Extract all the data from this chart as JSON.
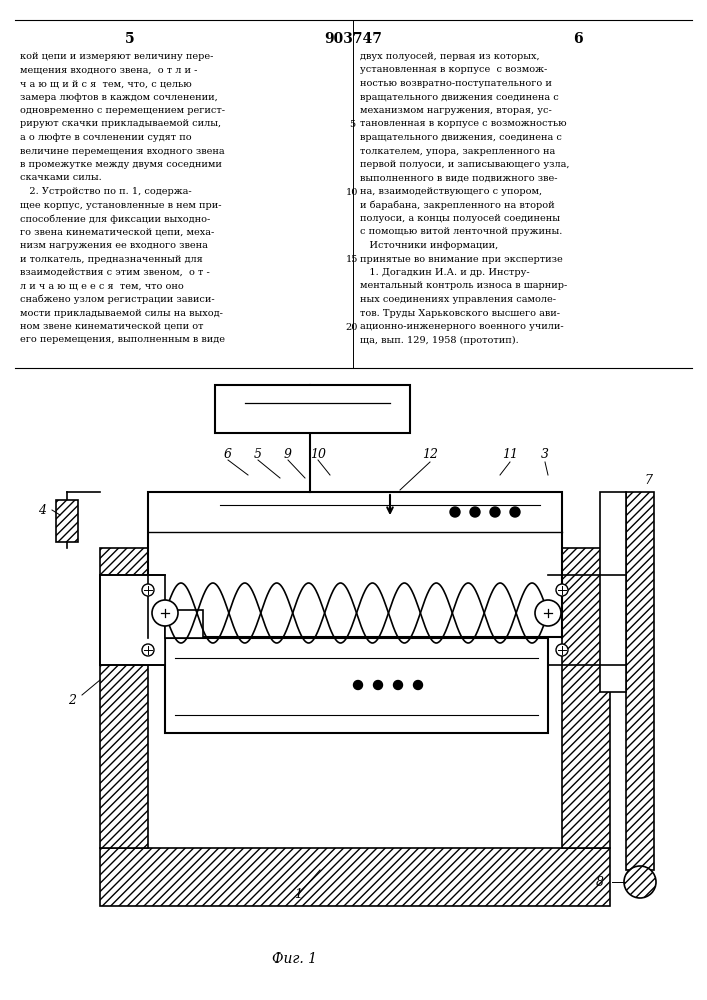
{
  "page_number_left": "5",
  "patent_number": "903747",
  "page_number_right": "6",
  "col_left_text": [
    "кой цепи и измеряют величину пере-",
    "мещения входного звена,  о т л и -",
    "ч а ю щ и й с я  тем, что, с целью",
    "замера люфтов в каждом сочленении,",
    "одновременно с перемещением регист-",
    "рируют скачки прикладываемой силы,",
    "а о люфте в сочленении судят по",
    "величине перемещения входного звена",
    "в промежутке между двумя соседними",
    "скачками силы.",
    "   2. Устройство по п. 1, содержа-",
    "щее корпус, установленные в нем при-",
    "способление для фиксации выходно-",
    "го звена кинематической цепи, меха-",
    "низм нагружения ее входного звена",
    "и толкатель, предназначенный для",
    "взаимодействия с этим звеном,  о т -",
    "л и ч а ю щ е е с я  тем, что оно",
    "снабжено узлом регистрации зависи-",
    "мости прикладываемой силы на выход-",
    "ном звене кинематической цепи от",
    "его перемещения, выполненным в виде"
  ],
  "col_right_text": [
    "двух полуосей, первая из которых,",
    "установленная в корпусе  с возмож-",
    "ностью возвратно-поступательного и",
    "вращательного движения соединена с",
    "механизмом нагружения, вторая, ус-",
    "тановленная в корпусе с возможностью",
    "вращательного движения, соединена с",
    "толкателем, упора, закрепленного на",
    "первой полуоси, и записывающего узла,",
    "выполненного в виде подвижного зве-",
    "на, взаимодействующего с упором,",
    "и барабана, закрепленного на второй",
    "полуоси, а концы полуосей соединены",
    "с помощью витой ленточной пружины.",
    "   Источники информации,",
    "принятые во внимание при экспертизе",
    "   1. Догадкин И.А. и др. Инстру-",
    "ментальный контроль износа в шарнир-",
    "ных соединениях управления самоле-",
    "тов. Труды Харьковского высшего ави-",
    "ационно-инженерного военного учили-",
    "ща, вып. 129, 1958 (прототип)."
  ],
  "fig_label": "Фиг. 1",
  "bg_color": "#ffffff",
  "text_color": "#000000",
  "line_color": "#000000"
}
